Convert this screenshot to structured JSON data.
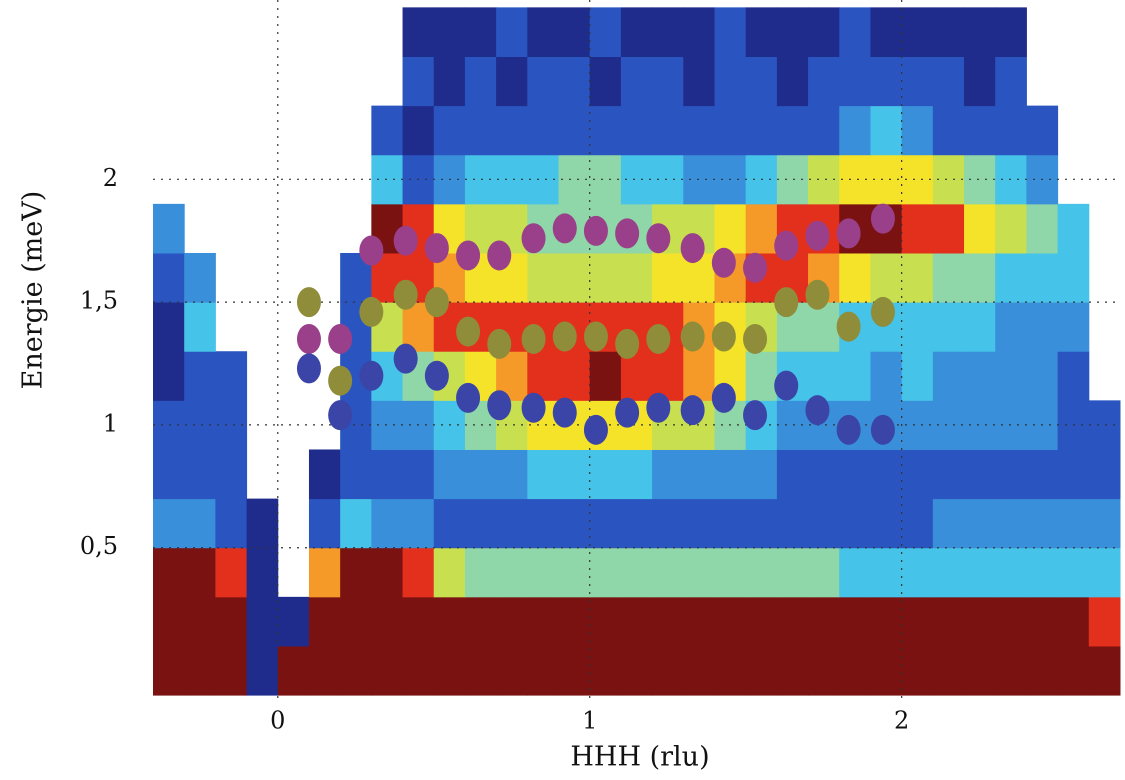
{
  "chart_data": {
    "type": "heatmap",
    "x_label": "HHH (rlu)",
    "y_label": "Energie (meV)",
    "xlim": [
      -0.4,
      2.7
    ],
    "ylim": [
      -0.12,
      2.73
    ],
    "xticks": [
      0,
      1,
      2
    ],
    "yticks": [
      {
        "value": 0.5,
        "label": "0,5"
      },
      1,
      {
        "value": 1.5,
        "label": "1,5"
      },
      2
    ],
    "grid": true,
    "colormap": [
      "#1f2c8c",
      "#2a55c0",
      "#3a8fdb",
      "#46c3e8",
      "#8fd6a8",
      "#c8e050",
      "#f5e32a",
      "#f59a28",
      "#e3301c",
      "#7a1212"
    ],
    "x": [
      -0.35,
      -0.25,
      -0.15,
      -0.05,
      0.05,
      0.15,
      0.25,
      0.35,
      0.45,
      0.55,
      0.65,
      0.75,
      0.85,
      0.95,
      1.05,
      1.15,
      1.25,
      1.35,
      1.45,
      1.55,
      1.65,
      1.75,
      1.85,
      1.95,
      2.05,
      2.15,
      2.25,
      2.35,
      2.45,
      2.55,
      2.65
    ],
    "y": [
      0.0,
      0.2,
      0.4,
      0.6,
      0.8,
      1.0,
      1.2,
      1.4,
      1.6,
      1.8,
      2.0,
      2.2,
      2.4,
      2.6
    ],
    "z": [
      [
        9,
        9,
        9,
        0,
        9,
        9,
        9,
        9,
        9,
        9,
        9,
        9,
        9,
        9,
        9,
        9,
        9,
        9,
        9,
        9,
        9,
        9,
        9,
        9,
        9,
        9,
        9,
        9,
        9,
        9,
        9
      ],
      [
        9,
        9,
        9,
        0,
        0,
        9,
        9,
        9,
        9,
        9,
        9,
        9,
        9,
        9,
        9,
        9,
        9,
        9,
        9,
        9,
        9,
        9,
        9,
        9,
        9,
        9,
        9,
        9,
        9,
        9,
        8
      ],
      [
        9,
        9,
        8,
        0,
        null,
        7,
        9,
        9,
        8,
        5,
        4,
        4,
        4,
        4,
        4,
        4,
        4,
        4,
        4,
        4,
        4,
        4,
        3,
        3,
        3,
        3,
        3,
        3,
        3,
        3,
        3
      ],
      [
        2,
        2,
        1,
        0,
        null,
        1,
        3,
        2,
        2,
        1,
        1,
        1,
        1,
        1,
        1,
        1,
        1,
        1,
        1,
        1,
        1,
        1,
        1,
        1,
        1,
        2,
        2,
        2,
        2,
        2,
        2
      ],
      [
        1,
        1,
        1,
        null,
        null,
        0,
        1,
        1,
        1,
        2,
        2,
        2,
        3,
        3,
        3,
        3,
        2,
        2,
        2,
        2,
        1,
        1,
        1,
        1,
        1,
        1,
        1,
        1,
        1,
        1,
        1
      ],
      [
        1,
        1,
        1,
        null,
        null,
        null,
        1,
        2,
        2,
        3,
        4,
        5,
        6,
        6,
        6,
        6,
        5,
        5,
        4,
        3,
        2,
        2,
        2,
        2,
        2,
        2,
        2,
        2,
        2,
        1,
        1
      ],
      [
        0,
        1,
        1,
        null,
        null,
        null,
        1,
        3,
        4,
        5,
        6,
        7,
        8,
        8,
        9,
        8,
        8,
        7,
        6,
        4,
        3,
        3,
        3,
        2,
        3,
        2,
        2,
        2,
        2,
        1,
        null
      ],
      [
        0,
        3,
        null,
        null,
        null,
        null,
        1,
        5,
        7,
        8,
        8,
        8,
        8,
        8,
        8,
        8,
        8,
        7,
        6,
        5,
        4,
        4,
        3,
        3,
        3,
        3,
        3,
        2,
        2,
        2,
        null
      ],
      [
        1,
        2,
        null,
        null,
        null,
        null,
        1,
        8,
        8,
        7,
        6,
        6,
        5,
        5,
        5,
        5,
        6,
        6,
        7,
        8,
        8,
        7,
        6,
        5,
        5,
        4,
        4,
        3,
        3,
        3,
        null
      ],
      [
        2,
        null,
        null,
        null,
        null,
        null,
        null,
        9,
        8,
        6,
        5,
        5,
        4,
        4,
        4,
        4,
        5,
        5,
        6,
        7,
        8,
        8,
        9,
        9,
        8,
        8,
        6,
        5,
        4,
        3,
        null
      ],
      [
        null,
        null,
        null,
        null,
        null,
        null,
        null,
        3,
        1,
        2,
        3,
        3,
        3,
        4,
        4,
        3,
        3,
        2,
        2,
        3,
        4,
        5,
        6,
        6,
        6,
        5,
        4,
        3,
        2,
        null,
        null
      ],
      [
        null,
        null,
        null,
        null,
        null,
        null,
        null,
        1,
        0,
        1,
        1,
        1,
        1,
        1,
        1,
        1,
        1,
        1,
        1,
        1,
        1,
        1,
        2,
        3,
        2,
        1,
        1,
        1,
        1,
        null,
        null
      ],
      [
        null,
        null,
        null,
        null,
        null,
        null,
        null,
        null,
        1,
        0,
        1,
        0,
        1,
        1,
        0,
        1,
        1,
        0,
        1,
        1,
        0,
        1,
        1,
        1,
        1,
        1,
        0,
        1,
        null,
        null,
        null
      ],
      [
        null,
        null,
        null,
        null,
        null,
        null,
        null,
        null,
        0,
        0,
        0,
        1,
        0,
        0,
        1,
        0,
        0,
        0,
        1,
        0,
        0,
        0,
        1,
        0,
        0,
        0,
        0,
        0,
        null,
        null,
        null
      ]
    ],
    "series": [
      {
        "color": "#9a3f8a",
        "x": [
          0.1,
          0.2,
          0.3,
          0.41,
          0.51,
          0.61,
          0.71,
          0.82,
          0.92,
          1.02,
          1.12,
          1.22,
          1.33,
          1.43,
          1.53,
          1.63,
          1.73,
          1.83,
          1.94
        ],
        "values": [
          1.35,
          1.35,
          1.71,
          1.75,
          1.72,
          1.69,
          1.69,
          1.76,
          1.8,
          1.79,
          1.78,
          1.76,
          1.72,
          1.66,
          1.64,
          1.73,
          1.77,
          1.78,
          1.84
        ]
      },
      {
        "color": "#8f8c3a",
        "x": [
          0.1,
          0.2,
          0.3,
          0.41,
          0.51,
          0.61,
          0.71,
          0.82,
          0.92,
          1.02,
          1.12,
          1.22,
          1.33,
          1.43,
          1.53,
          1.63,
          1.73,
          1.83,
          1.94
        ],
        "values": [
          1.5,
          1.18,
          1.46,
          1.53,
          1.5,
          1.38,
          1.33,
          1.35,
          1.36,
          1.36,
          1.33,
          1.35,
          1.36,
          1.36,
          1.35,
          1.5,
          1.53,
          1.4,
          1.46
        ]
      },
      {
        "color": "#3b45a8",
        "x": [
          0.1,
          0.2,
          0.3,
          0.41,
          0.51,
          0.61,
          0.71,
          0.82,
          0.92,
          1.02,
          1.12,
          1.22,
          1.33,
          1.43,
          1.53,
          1.63,
          1.73,
          1.83,
          1.94
        ],
        "values": [
          1.23,
          1.04,
          1.2,
          1.27,
          1.2,
          1.11,
          1.08,
          1.07,
          1.05,
          0.98,
          1.05,
          1.07,
          1.06,
          1.11,
          1.04,
          1.16,
          1.06,
          0.98,
          0.98
        ]
      }
    ]
  }
}
